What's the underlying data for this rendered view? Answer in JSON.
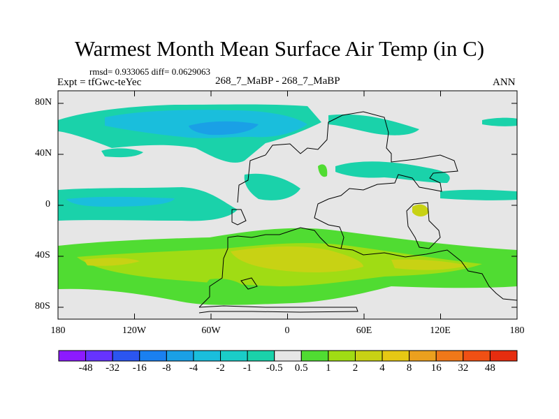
{
  "title": "Warmest Month Mean Surface Air Temp (in C)",
  "stats_line": "rmsd= 0.933065 diff= 0.0629063",
  "expt_label": "Expt = tfGwc-teYec",
  "center_label": "268_7_MaBP - 268_7_MaBP",
  "season_label": "ANN",
  "map": {
    "lat_ticks": [
      "80N",
      "40N",
      "0",
      "40S",
      "80S"
    ],
    "lon_ticks": [
      "180",
      "120W",
      "60W",
      "0",
      "60E",
      "120E",
      "180"
    ]
  },
  "colorbar": {
    "labels": [
      "-48",
      "-32",
      "-16",
      "-8",
      "-4",
      "-2",
      "-1",
      "-0.5",
      "0.5",
      "1",
      "2",
      "4",
      "8",
      "16",
      "32",
      "48"
    ],
    "colors": [
      "#8c1aff",
      "#6633ff",
      "#2b55f0",
      "#1a80f0",
      "#1aa0e6",
      "#1abedc",
      "#1acdc8",
      "#1ad2aa",
      "#e6e6e6",
      "#50dc32",
      "#a0dc14",
      "#c8d214",
      "#e6c814",
      "#eba01e",
      "#f07819",
      "#f05014",
      "#e62d0f"
    ]
  },
  "colors": {
    "background_field": "#e6e6e6",
    "cyan_neg": "#1ad2aa",
    "blue_neg": "#1abedc",
    "deep_blue_neg": "#1aa0e6",
    "green_pos": "#50dc32",
    "yellowgreen_pos": "#a0dc14",
    "olive_pos": "#c8d214",
    "coast": "#000000"
  }
}
